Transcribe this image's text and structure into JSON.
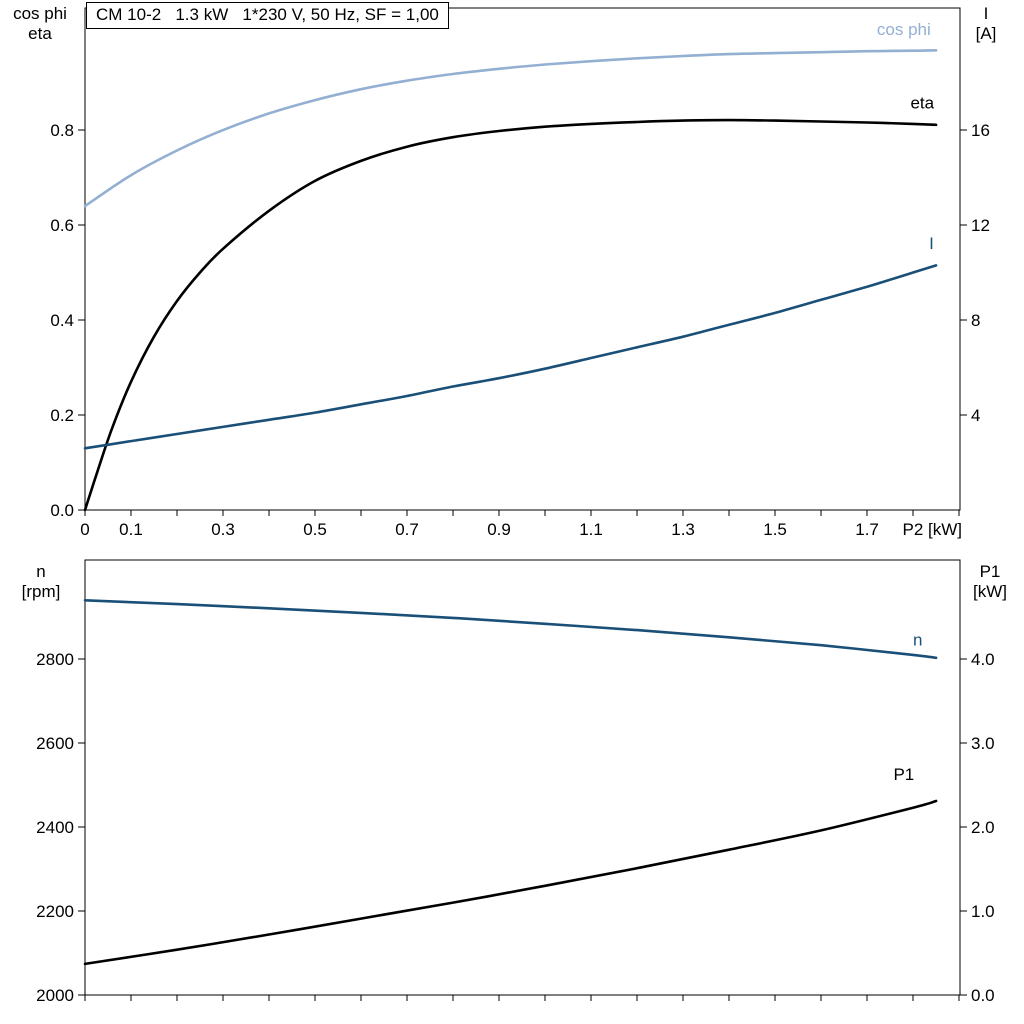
{
  "title": "CM 10-2   1.3 kW   1*230 V, 50 Hz, SF = 1,00",
  "accent_colors": {
    "light_blue": "#93afd2",
    "dark_blue": "#1a5078",
    "black": "#000000"
  },
  "chart_data": [
    {
      "type": "line",
      "name": "electrical characteristics vs shaft power",
      "x_axis": {
        "label": "P2 [kW]",
        "min": 0,
        "max": 1.902,
        "minor_step": 0.1,
        "ticks": [
          0,
          0.1,
          0.3,
          0.5,
          0.7,
          0.9,
          1.1,
          1.3,
          1.5,
          1.7
        ],
        "tick_labels": [
          "0",
          "0.1",
          "0.3",
          "0.5",
          "0.7",
          "0.9",
          "1.1",
          "1.3",
          "1.5",
          "1.7"
        ]
      },
      "y_left": {
        "label_lines": [
          "cos phi",
          "eta"
        ],
        "min": 0,
        "max": 1.057,
        "ticks": [
          0.0,
          0.2,
          0.4,
          0.6,
          0.8
        ],
        "tick_labels": [
          "0.0",
          "0.2",
          "0.4",
          "0.6",
          "0.8"
        ]
      },
      "y_right": {
        "label_lines": [
          "I",
          "[A]"
        ],
        "min": 0,
        "max": 21.14,
        "ticks": [
          4,
          8,
          12,
          16
        ],
        "tick_labels": [
          "4",
          "8",
          "12",
          "16"
        ]
      },
      "grid": false,
      "legend_position": "curve-end-labels",
      "series": [
        {
          "name": "cos-phi",
          "axis": "left",
          "color": "#93afd2",
          "width": 2.6,
          "x": [
            0,
            0.1,
            0.2,
            0.3,
            0.4,
            0.5,
            0.6,
            0.7,
            0.8,
            0.9,
            1.0,
            1.1,
            1.2,
            1.3,
            1.4,
            1.5,
            1.6,
            1.7,
            1.8,
            1.85
          ],
          "y": [
            0.64,
            0.705,
            0.757,
            0.8,
            0.835,
            0.863,
            0.886,
            0.904,
            0.918,
            0.929,
            0.938,
            0.945,
            0.951,
            0.956,
            0.96,
            0.962,
            0.964,
            0.966,
            0.967,
            0.968
          ],
          "label": {
            "text": "cos phi",
            "x": 1.78,
            "y": 1.0
          }
        },
        {
          "name": "eta",
          "axis": "left",
          "color": "#000000",
          "width": 2.6,
          "x": [
            0,
            0.03,
            0.06,
            0.1,
            0.15,
            0.2,
            0.25,
            0.3,
            0.4,
            0.5,
            0.6,
            0.7,
            0.8,
            0.9,
            1.0,
            1.1,
            1.2,
            1.3,
            1.4,
            1.5,
            1.6,
            1.7,
            1.8,
            1.85
          ],
          "y": [
            0,
            0.09,
            0.175,
            0.27,
            0.365,
            0.44,
            0.5,
            0.55,
            0.63,
            0.693,
            0.735,
            0.765,
            0.785,
            0.798,
            0.807,
            0.813,
            0.817,
            0.82,
            0.821,
            0.82,
            0.818,
            0.816,
            0.813,
            0.811
          ],
          "label": {
            "text": "eta",
            "x": 1.82,
            "y": 0.845
          }
        },
        {
          "name": "current",
          "axis": "right",
          "color": "#1a5078",
          "width": 2.6,
          "x": [
            0,
            0.1,
            0.2,
            0.3,
            0.4,
            0.5,
            0.6,
            0.7,
            0.8,
            0.9,
            1.0,
            1.1,
            1.2,
            1.3,
            1.4,
            1.5,
            1.6,
            1.7,
            1.8,
            1.85
          ],
          "y": [
            2.6,
            2.9,
            3.2,
            3.5,
            3.8,
            4.1,
            4.45,
            4.8,
            5.2,
            5.55,
            5.95,
            6.4,
            6.85,
            7.3,
            7.8,
            8.3,
            8.85,
            9.4,
            10.0,
            10.3
          ],
          "label": {
            "text": "I",
            "x": 1.84,
            "y": 11.0
          }
        }
      ]
    },
    {
      "type": "line",
      "name": "speed and input power vs shaft power",
      "x_axis": {
        "label": "",
        "min": 0,
        "max": 1.902,
        "minor_step": 0.1,
        "ticks": [],
        "tick_labels": []
      },
      "y_left": {
        "label_lines": [
          "n",
          "[rpm]"
        ],
        "min": 2000,
        "max": 3036,
        "ticks": [
          2000,
          2200,
          2400,
          2600,
          2800
        ],
        "tick_labels": [
          "2000",
          "2200",
          "2400",
          "2600",
          "2800"
        ]
      },
      "y_right": {
        "label_lines": [
          "P1",
          "[kW]"
        ],
        "min": 0,
        "max": 5.18,
        "ticks": [
          0,
          1,
          2,
          3,
          4
        ],
        "tick_labels": [
          "0.0",
          "1.0",
          "2.0",
          "3.0",
          "4.0"
        ]
      },
      "grid": false,
      "legend_position": "curve-end-labels",
      "series": [
        {
          "name": "speed",
          "axis": "left",
          "color": "#1a5078",
          "width": 2.6,
          "x": [
            0,
            0.2,
            0.4,
            0.6,
            0.8,
            1.0,
            1.2,
            1.4,
            1.6,
            1.8,
            1.85
          ],
          "y": [
            2940,
            2931,
            2921,
            2910,
            2898,
            2884,
            2869,
            2852,
            2833,
            2810,
            2803
          ],
          "label": {
            "text": "n",
            "x": 1.81,
            "y": 2832
          }
        },
        {
          "name": "input-power",
          "axis": "right",
          "color": "#000000",
          "width": 2.6,
          "x": [
            0,
            0.2,
            0.4,
            0.6,
            0.8,
            1.0,
            1.2,
            1.4,
            1.6,
            1.8,
            1.85
          ],
          "y": [
            0.37,
            0.54,
            0.72,
            0.91,
            1.1,
            1.3,
            1.51,
            1.73,
            1.96,
            2.23,
            2.31
          ],
          "label": {
            "text": "P1",
            "x": 1.78,
            "y": 2.56
          }
        }
      ]
    }
  ]
}
